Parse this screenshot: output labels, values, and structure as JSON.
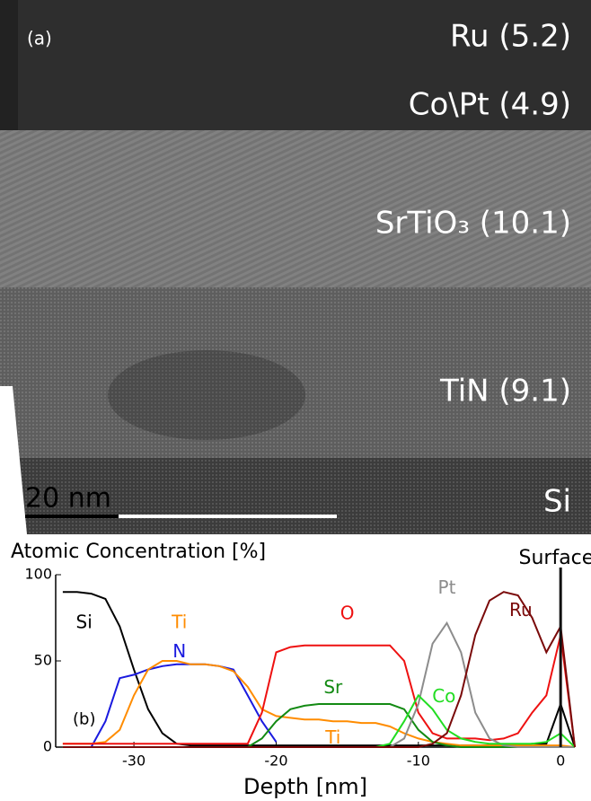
{
  "micrograph": {
    "panel_label": "(a)",
    "layers": [
      "Ru (5.2)",
      "Co\\Pt (4.9)",
      "SrTiO₃ (10.1)",
      "TiN (9.1)",
      "Si"
    ],
    "scale_bar": "20 nm"
  },
  "chart_data": {
    "type": "line",
    "title": "Atomic Concentration [%]",
    "x_label": "Depth [nm]",
    "annotations": [
      "(b)",
      "Surface"
    ],
    "x": [
      -35,
      -34,
      -33,
      -32,
      -31,
      -30,
      -29,
      -28,
      -27,
      -26,
      -25,
      -24,
      -23,
      -22,
      -21,
      -20,
      -19,
      -18,
      -17,
      -16,
      -15,
      -14,
      -13,
      -12,
      -11,
      -10,
      -9,
      -8,
      -7,
      -6,
      -5,
      -4,
      -3,
      -2,
      -1,
      0,
      1
    ],
    "xlim": [
      -35.5,
      1
    ],
    "xticks": [
      -30,
      -20,
      -10,
      0
    ],
    "ylim": [
      0,
      100
    ],
    "yticks": [
      0,
      50,
      100
    ],
    "series": [
      {
        "name": "Si",
        "color": "#000000",
        "values": [
          90,
          90,
          89,
          86,
          70,
          45,
          22,
          8,
          2,
          1,
          1,
          1,
          1,
          1,
          1,
          1,
          1,
          1,
          1,
          1,
          1,
          1,
          1,
          1,
          1,
          1,
          1,
          1,
          1,
          1,
          1,
          1,
          1,
          2,
          2,
          25,
          0
        ]
      },
      {
        "name": "N",
        "color": "#1a1adf",
        "values": [
          null,
          null,
          0,
          15,
          40,
          42,
          45,
          47,
          48,
          48,
          48,
          47,
          45,
          30,
          15,
          3,
          null,
          null,
          null,
          null,
          null,
          null,
          null,
          null,
          null,
          null,
          null,
          null,
          null,
          null,
          null,
          null,
          null,
          null,
          null,
          null,
          null
        ]
      },
      {
        "name": "Ti",
        "color": "#ff8c00",
        "values": [
          2,
          2,
          2,
          3,
          10,
          30,
          45,
          50,
          50,
          48,
          48,
          47,
          44,
          35,
          22,
          18,
          17,
          16,
          16,
          15,
          15,
          14,
          14,
          12,
          8,
          5,
          3,
          2,
          1,
          1,
          1,
          1,
          1,
          1,
          1,
          1,
          0
        ]
      },
      {
        "name": "O",
        "color": "#ee1111",
        "values": [
          2,
          2,
          2,
          2,
          2,
          2,
          2,
          2,
          2,
          2,
          2,
          2,
          2,
          2,
          20,
          55,
          58,
          59,
          59,
          59,
          59,
          59,
          59,
          59,
          50,
          20,
          8,
          5,
          5,
          5,
          4,
          5,
          8,
          20,
          30,
          65,
          0
        ]
      },
      {
        "name": "Sr",
        "color": "#138a13",
        "values": [
          0,
          0,
          0,
          0,
          0,
          0,
          0,
          0,
          0,
          0,
          0,
          0,
          0,
          0,
          5,
          15,
          22,
          24,
          25,
          25,
          25,
          25,
          25,
          25,
          22,
          10,
          3,
          1,
          0,
          0,
          0,
          0,
          0,
          0,
          0,
          0,
          0
        ]
      },
      {
        "name": "Pt",
        "color": "#8c8c8c",
        "values": [
          0,
          0,
          0,
          0,
          0,
          0,
          0,
          0,
          0,
          0,
          0,
          0,
          0,
          0,
          0,
          0,
          0,
          0,
          0,
          0,
          0,
          0,
          0,
          0,
          5,
          25,
          60,
          72,
          55,
          20,
          5,
          1,
          0,
          0,
          0,
          0,
          0
        ]
      },
      {
        "name": "Co",
        "color": "#22dd22",
        "values": [
          0,
          0,
          0,
          0,
          0,
          0,
          0,
          0,
          0,
          0,
          0,
          0,
          0,
          0,
          0,
          0,
          0,
          0,
          0,
          0,
          0,
          0,
          0,
          2,
          15,
          30,
          22,
          10,
          5,
          3,
          2,
          2,
          2,
          2,
          3,
          8,
          0
        ]
      },
      {
        "name": "Ru",
        "color": "#7a0a0a",
        "values": [
          0,
          0,
          0,
          0,
          0,
          0,
          0,
          0,
          0,
          0,
          0,
          0,
          0,
          0,
          0,
          0,
          0,
          0,
          0,
          0,
          0,
          0,
          0,
          0,
          0,
          0,
          2,
          8,
          30,
          65,
          85,
          90,
          88,
          75,
          55,
          70,
          0
        ]
      }
    ]
  }
}
